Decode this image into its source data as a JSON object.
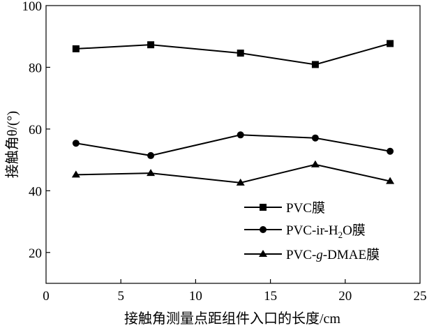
{
  "chart_data": {
    "type": "line",
    "x": [
      2,
      7,
      13,
      18,
      23
    ],
    "series": [
      {
        "name": "PVC膜",
        "marker": "square",
        "values": [
          86,
          87.3,
          84.6,
          80.9,
          87.7
        ]
      },
      {
        "name": "PVC-ir-H2O膜",
        "marker": "circle",
        "values": [
          55.4,
          51.4,
          58.1,
          57.1,
          52.8
        ]
      },
      {
        "name": "PVC-g-DMAE膜",
        "marker": "triangle",
        "values": [
          45.2,
          45.7,
          42.6,
          48.5,
          43.1
        ]
      }
    ],
    "xlabel": "接触角测量点距组件入口的长度/cm",
    "ylabel": "接触角θ/(°)",
    "xlim": [
      0,
      25
    ],
    "ylim": [
      10,
      100
    ],
    "xticks": [
      0,
      5,
      10,
      15,
      20,
      25
    ],
    "yticks": [
      20,
      40,
      60,
      80,
      100
    ],
    "grid": false,
    "legend_position": "bottom-right",
    "color": "#000000"
  }
}
